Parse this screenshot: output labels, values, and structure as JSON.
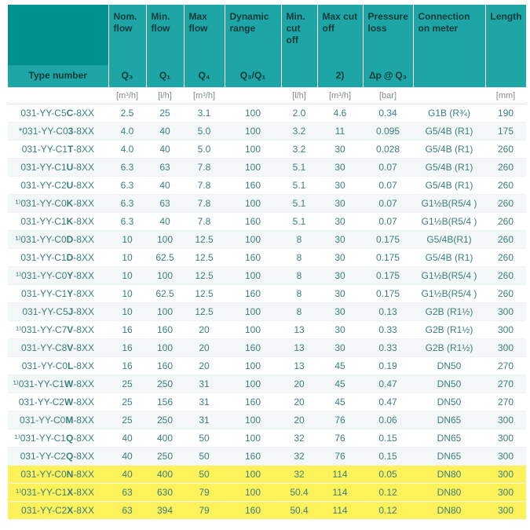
{
  "headers": {
    "main": [
      "",
      "Nom. flow",
      "Min. flow",
      "Max flow",
      "Dynamic range",
      "Min. cut off",
      "Max cut off",
      "Pressure loss",
      "Connection on meter",
      "Length"
    ],
    "typeLabel": "Type number",
    "sub": [
      "Q₃",
      "Q₁",
      "Q₄",
      "Q₃/Q₁",
      "",
      "2)",
      "Δp @ Q₃",
      "",
      ""
    ],
    "units": [
      "[m³/h]",
      "[l/h]",
      "[m³/h]",
      "",
      "[l/h]",
      "[m³/h]",
      "[bar]",
      "",
      "[mm]"
    ]
  },
  "rows": [
    {
      "n": "031-YY-C5C-8XX",
      "v": [
        "2.5",
        "25",
        "3.1",
        "100",
        "2.0",
        "4.6",
        "0.34",
        "G1B (R¾)",
        "190"
      ]
    },
    {
      "n": "*031-YY-C03-8XX",
      "v": [
        "4.0",
        "40",
        "5.0",
        "100",
        "3.2",
        "11",
        "0.095",
        "G5/4B (R1)",
        "175"
      ]
    },
    {
      "n": "031-YY-C1T-8XX",
      "v": [
        "4.0",
        "40",
        "5.0",
        "100",
        "3.2",
        "30",
        "0.028",
        "G5/4B (R1)",
        "260"
      ]
    },
    {
      "n": "031-YY-C1U-8XX",
      "v": [
        "6.3",
        "63",
        "7.8",
        "100",
        "5.1",
        "30",
        "0.07",
        "G5/4B (R1)",
        "260"
      ]
    },
    {
      "n": "031-YY-C2U-8XX",
      "v": [
        "6.3",
        "40",
        "7.8",
        "160",
        "5.1",
        "30",
        "0.07",
        "G5/4B (R1)",
        "260"
      ]
    },
    {
      "n": "¹⁾031-YY-C0K-8XX",
      "v": [
        "6.3",
        "63",
        "7.8",
        "100",
        "5.1",
        "30",
        "0.07",
        "G1½B(R5/4 )",
        "260"
      ]
    },
    {
      "n": "031-YY-C1K-8XX",
      "v": [
        "6.3",
        "40",
        "7.8",
        "160",
        "5.1",
        "30",
        "0.07",
        "G1½B(R5/4 )",
        "260"
      ]
    },
    {
      "n": "¹⁾031-YY-C0D-8XX",
      "v": [
        "10",
        "100",
        "12.5",
        "100",
        "8",
        "30",
        "0.175",
        "G5/4B(R1)",
        "260"
      ]
    },
    {
      "n": "031-YY-C1D-8XX",
      "v": [
        "10",
        "62.5",
        "12.5",
        "160",
        "8",
        "30",
        "0.175",
        "G5/4B (R1)",
        "260"
      ]
    },
    {
      "n": "¹⁾031-YY-C0Y-8XX",
      "v": [
        "10",
        "100",
        "12.5",
        "100",
        "8",
        "30",
        "0.175",
        "G1½B(R5/4 )",
        "260"
      ]
    },
    {
      "n": "031-YY-C1Y-8XX",
      "v": [
        "10",
        "62.5",
        "12.5",
        "160",
        "8",
        "30",
        "0.175",
        "G1½B(R5/4 )",
        "260"
      ]
    },
    {
      "n": "031-YY-C5J-8XX",
      "v": [
        "10",
        "100",
        "12.5",
        "100",
        "8",
        "30",
        "0.13",
        "G2B (R1½)",
        "300"
      ]
    },
    {
      "n": "¹⁾031-YY-C7V-8XX",
      "v": [
        "16",
        "160",
        "20",
        "100",
        "13",
        "30",
        "0.33",
        "G2B (R1½)",
        "300"
      ]
    },
    {
      "n": "031-YY-C8V-8XX",
      "v": [
        "16",
        "100",
        "20",
        "160",
        "13",
        "30",
        "0.33",
        "G2B (R1½)",
        "300"
      ]
    },
    {
      "n": "031-YY-C0L-8XX",
      "v": [
        "16",
        "160",
        "20",
        "100",
        "13",
        "45",
        "0.19",
        "DN50",
        "270"
      ]
    },
    {
      "n": "¹⁾031-YY-C1W-8XX",
      "v": [
        "25",
        "250",
        "31",
        "100",
        "20",
        "45",
        "0.47",
        "DN50",
        "270"
      ]
    },
    {
      "n": "031-YY-C2W-8XX",
      "v": [
        "25",
        "156",
        "31",
        "160",
        "20",
        "45",
        "0.47",
        "DN50",
        "270"
      ]
    },
    {
      "n": "031-YY-C0M-8XX",
      "v": [
        "25",
        "250",
        "31",
        "100",
        "20",
        "76",
        "0.06",
        "DN65",
        "300"
      ]
    },
    {
      "n": "¹⁾031-YY-C1Q-8XX",
      "v": [
        "40",
        "400",
        "50",
        "100",
        "32",
        "76",
        "0.15",
        "DN65",
        "300"
      ]
    },
    {
      "n": "031-YY-C2Q-8XX",
      "v": [
        "40",
        "250",
        "50",
        "160",
        "32",
        "76",
        "0.15",
        "DN65",
        "300"
      ]
    },
    {
      "n": "031-YY-C0N-8XX",
      "v": [
        "40",
        "400",
        "50",
        "100",
        "32",
        "114",
        "0.05",
        "DN80",
        "300"
      ],
      "hl": true
    },
    {
      "n": "¹⁾031-YY-C1X-8XX",
      "v": [
        "63",
        "630",
        "79",
        "100",
        "50.4",
        "114",
        "0.12",
        "DN80",
        "300"
      ],
      "hl": true
    },
    {
      "n": "031-YY-C2X-8XX",
      "v": [
        "63",
        "394",
        "79",
        "160",
        "50.4",
        "114",
        "0.12",
        "DN80",
        "300"
      ],
      "hl": true
    }
  ]
}
